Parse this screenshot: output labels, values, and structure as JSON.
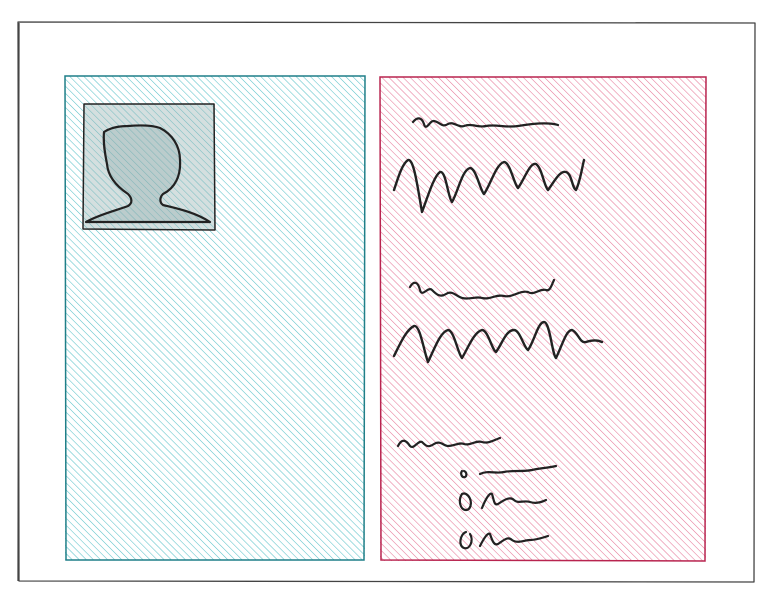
{
  "wireframe": {
    "style": "hand-drawn sketch",
    "left_panel": {
      "fill_color": "#3fb8c0",
      "border_color": "#1f7f88",
      "content": "user-silhouette-icon"
    },
    "right_panel": {
      "fill_color": "#e0577f",
      "border_color": "#b8244f",
      "content": "scribbled-text-blocks",
      "text_blocks": 2,
      "list_items": 3
    },
    "ink_color": "#222222",
    "frame_color": "#444444"
  }
}
